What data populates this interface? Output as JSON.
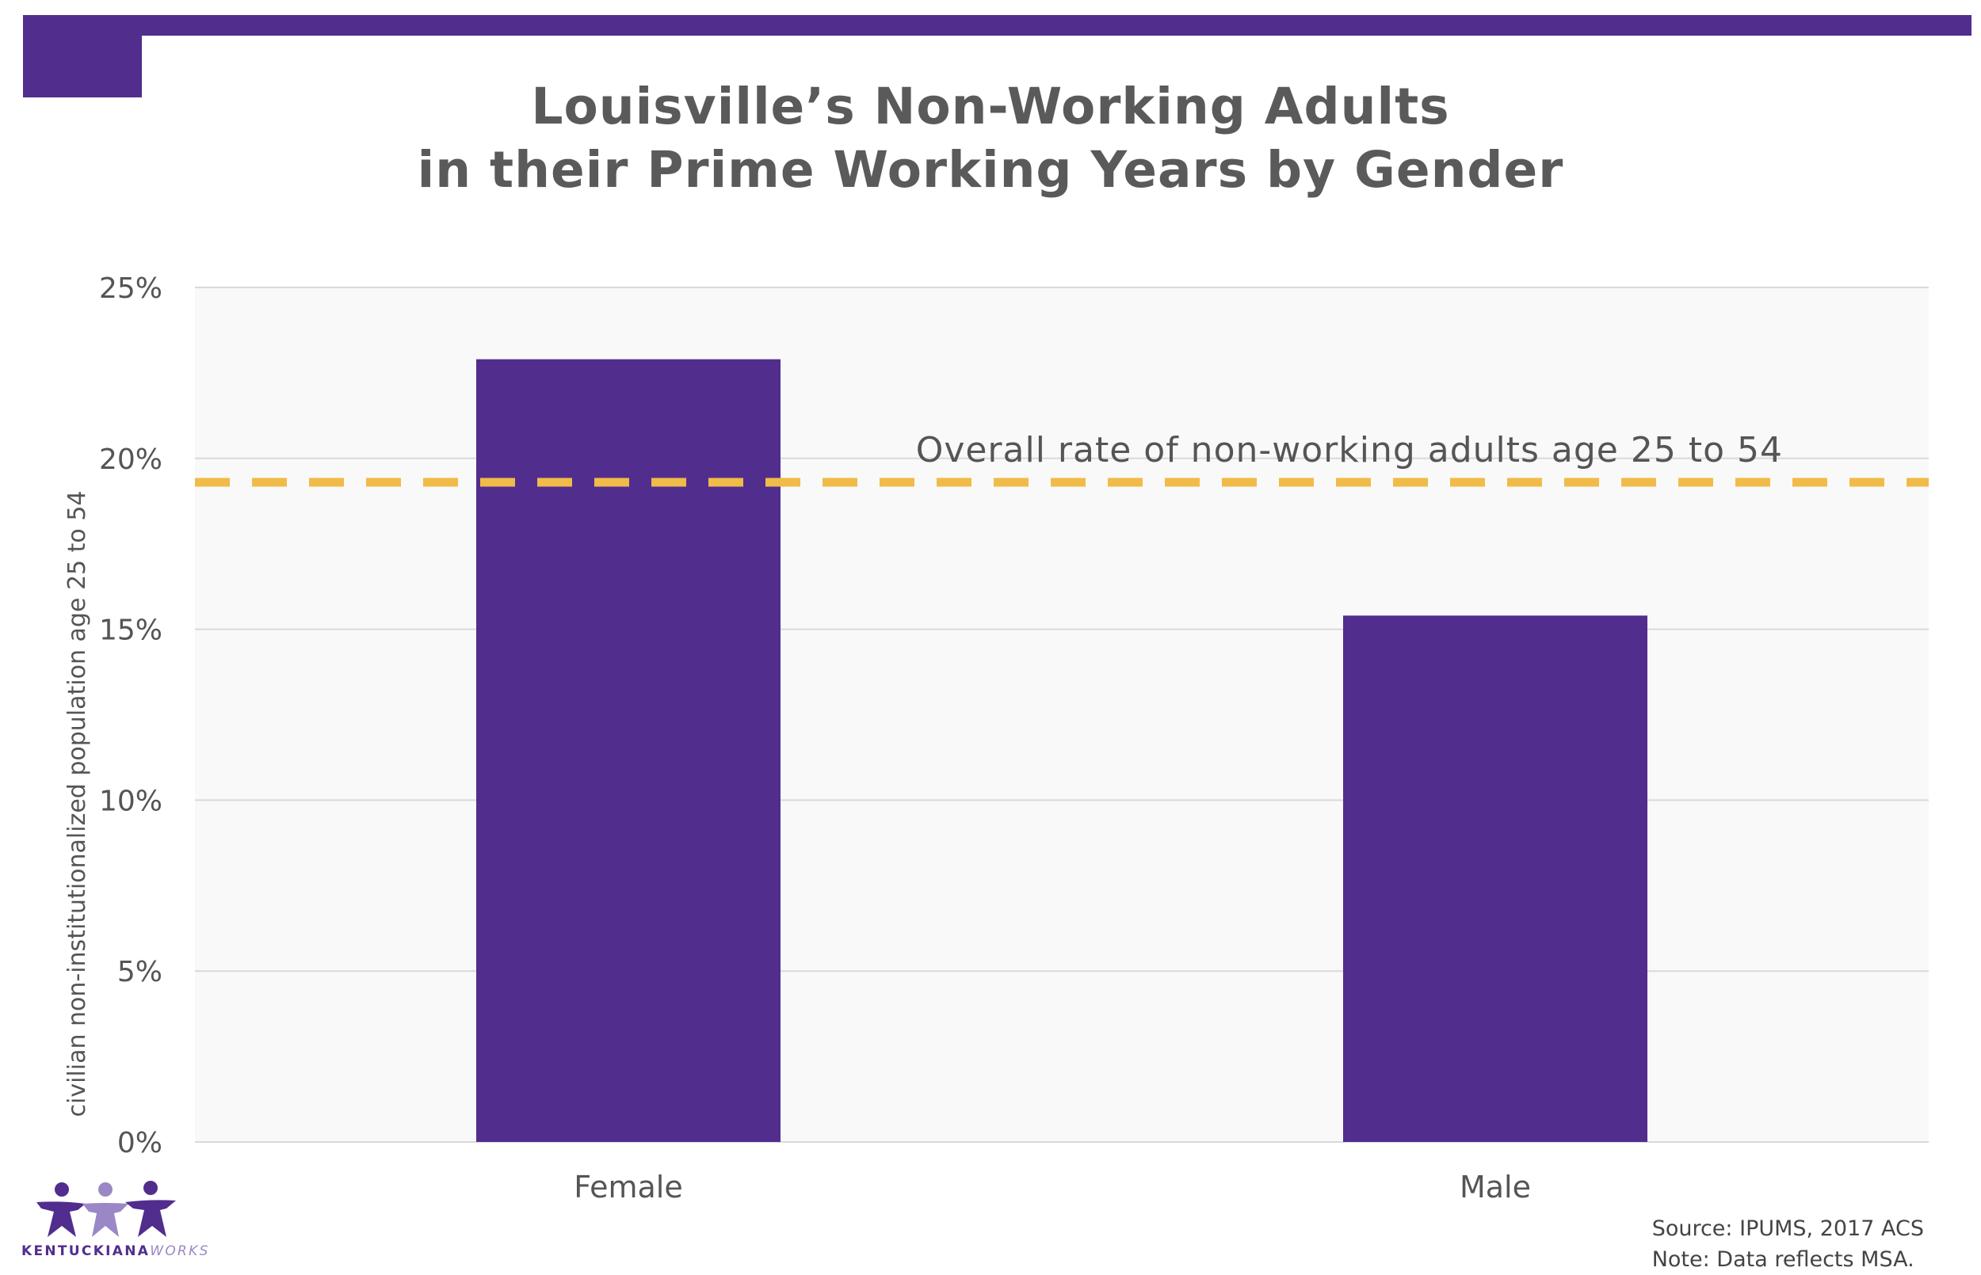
{
  "chart_data": {
    "type": "bar",
    "title_lines": [
      "Louisville’s Non-Working Adults",
      "in their Prime Working Years by Gender"
    ],
    "ylabel": "civilian non-institutionalized population age 25 to 54",
    "xlabel": "",
    "categories": [
      "Female",
      "Male"
    ],
    "values": [
      22.9,
      15.4
    ],
    "ylim": [
      0,
      25
    ],
    "yticks": [
      0,
      5,
      10,
      15,
      20,
      25
    ],
    "ytick_labels": [
      "0%",
      "5%",
      "10%",
      "15%",
      "20%",
      "25%"
    ],
    "reference_line": {
      "value": 19.3,
      "label": "Overall rate of non-working adults age 25 to 54"
    },
    "grid": true,
    "legend": "none"
  },
  "colors": {
    "bar": "#512d8e",
    "reference_line": "#f0bb48",
    "grid": "#d9d9d9",
    "plot_bg": "#f9f9f9",
    "accent": "#512d8e"
  },
  "footer": {
    "source": "Source: IPUMS, 2017 ACS",
    "note": "Note: Data reflects MSA."
  },
  "logo": {
    "name": "KENTUCKIANA",
    "suffix": "WORKS",
    "icon": "three-figures-logo-icon"
  }
}
